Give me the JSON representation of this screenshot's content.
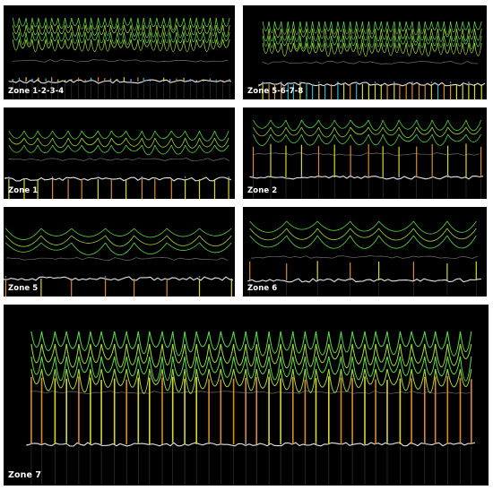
{
  "colors": {
    "background": "#000000",
    "page": "#ffffff",
    "pole_yellow": "#d7d62a",
    "pole_orange": "#d88a2c",
    "pole_cyan": "#2fb7c9",
    "cable_green": "#5ee04a",
    "cable_lime": "#a8e23a",
    "ground_white": "#e6e6e6",
    "guide_grey": "#8a8a8a",
    "label": "#ffffff"
  },
  "panels": [
    {
      "id": "zone-1-2-3-4",
      "label": "Zone 1-2-3-4",
      "pole_count": 34,
      "span_count": 33,
      "cable_rows": 4,
      "pole_colors": [
        "yellow",
        "cyan",
        "orange"
      ]
    },
    {
      "id": "zone-5-6-7-8",
      "label": "Zone 5-6-7-8",
      "pole_count": 36,
      "span_count": 35,
      "cable_rows": 4,
      "pole_colors": [
        "yellow",
        "cyan",
        "orange"
      ]
    },
    {
      "id": "zone-1",
      "label": "Zone 1",
      "pole_count": 16,
      "span_count": 15,
      "cable_rows": 3,
      "pole_colors": [
        "yellow",
        "orange"
      ]
    },
    {
      "id": "zone-2",
      "label": "Zone 2",
      "pole_count": 15,
      "span_count": 14,
      "cable_rows": 3,
      "pole_colors": [
        "yellow",
        "orange"
      ]
    },
    {
      "id": "zone-5",
      "label": "Zone 5",
      "pole_count": 8,
      "span_count": 7,
      "cable_rows": 3,
      "pole_colors": [
        "yellow",
        "orange"
      ]
    },
    {
      "id": "zone-6",
      "label": "Zone 6",
      "pole_count": 8,
      "span_count": 7,
      "cable_rows": 3,
      "pole_colors": [
        "yellow",
        "orange"
      ]
    },
    {
      "id": "zone-7",
      "label": "Zone 7",
      "pole_count": 38,
      "span_count": 37,
      "cable_rows": 4,
      "pole_colors": [
        "yellow",
        "orange"
      ]
    }
  ]
}
